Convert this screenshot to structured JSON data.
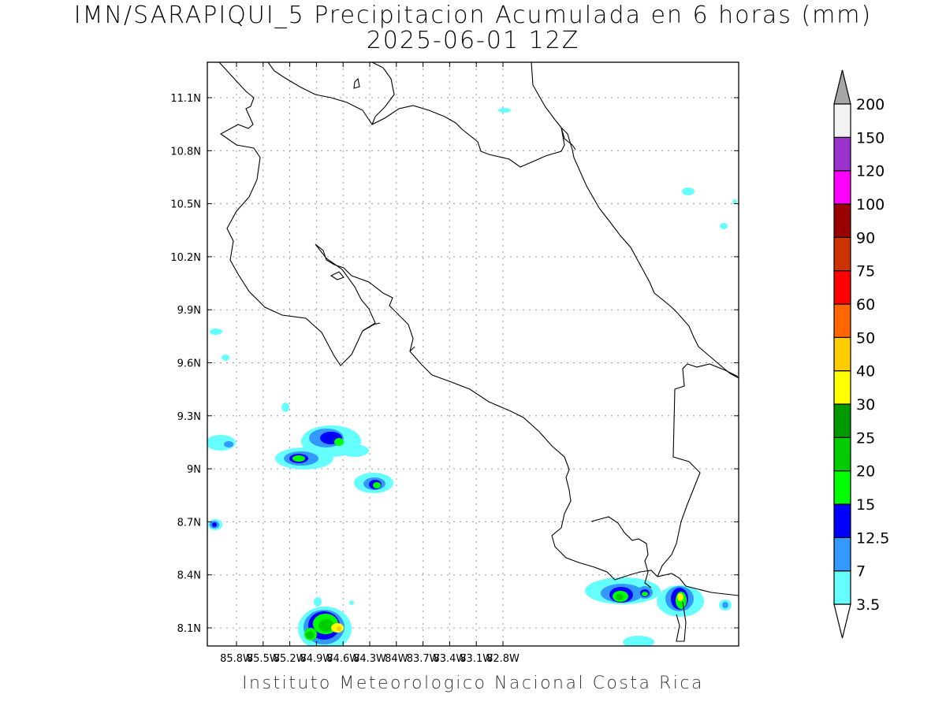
{
  "title": {
    "line1": "IMN/SARAPIQUI_5 Precipitacion Acumulada en 6 horas (mm)",
    "line2": "2025-06-01 12Z"
  },
  "footer": "Instituto Meteorologico Nacional Costa Rica",
  "map": {
    "lon_ticks": [
      "85.8W",
      "85.5W",
      "85.2W",
      "84.9W",
      "84.6W",
      "84.3W",
      "84W",
      "83.7W",
      "83.4W",
      "83.1W",
      "82.8W"
    ],
    "lat_ticks": [
      "11.1N",
      "10.8N",
      "10.5N",
      "10.2N",
      "9.9N",
      "9.6N",
      "9.3N",
      "9N",
      "8.7N",
      "8.4N",
      "8.1N"
    ],
    "lon_range": [
      -86.0,
      -82.5
    ],
    "lat_range": [
      8.0,
      11.2
    ],
    "grid": true
  },
  "colorbar": {
    "levels": [
      "3.5",
      "7",
      "12.5",
      "15",
      "20",
      "25",
      "30",
      "40",
      "50",
      "60",
      "75",
      "90",
      "100",
      "120",
      "150",
      "200"
    ],
    "colors": [
      "#66ffff",
      "#3399ff",
      "#0000ff",
      "#00ff00",
      "#00cc00",
      "#009900",
      "#ffff00",
      "#ffcc00",
      "#ff6600",
      "#ff0000",
      "#cc3300",
      "#990000",
      "#ff00ff",
      "#9933cc",
      "#f2f2f2",
      "#a6a6a6"
    ]
  }
}
